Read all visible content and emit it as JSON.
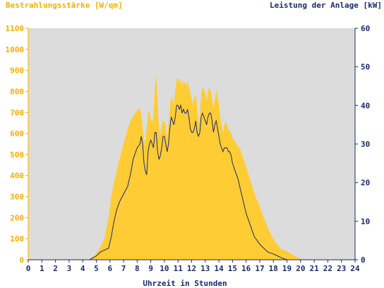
{
  "chart_data": {
    "type": "area",
    "left_title": "Bestrahlungsstärke [W/qm]",
    "right_title": "Leistung der Anlage [kW]",
    "xlabel": "Uhrzeit in Stunden",
    "x_ticks": [
      "0",
      "1",
      "2",
      "3",
      "4",
      "5",
      "6",
      "7",
      "8",
      "9",
      "10",
      "11",
      "12",
      "13",
      "14",
      "15",
      "16",
      "17",
      "18",
      "19",
      "20",
      "21",
      "22",
      "23",
      "24"
    ],
    "y_left_ticks": [
      "0",
      "100",
      "200",
      "300",
      "400",
      "500",
      "600",
      "700",
      "800",
      "900",
      "1000",
      "1100"
    ],
    "y_right_ticks": [
      "0",
      "10",
      "20",
      "30",
      "40",
      "50",
      "60"
    ],
    "xlim": [
      0,
      24
    ],
    "ylim_left": [
      0,
      1100
    ],
    "ylim_right": [
      0,
      60
    ],
    "grid": false,
    "colors": {
      "plot_background": "#dcdcdc",
      "irradiance_fill": "#ffcc33",
      "power_line": "#1a2a6e",
      "left_axis": "#f5b000",
      "right_axis": "#1a2a6e"
    },
    "series": [
      {
        "axis": "left",
        "style": "area",
        "x": [
          0,
          4.5,
          5,
          5.3,
          5.6,
          5.9,
          6.1,
          6.3,
          6.5,
          6.7,
          7.0,
          7.3,
          7.5,
          7.7,
          7.9,
          8.0,
          8.2,
          8.3,
          8.4,
          8.5,
          8.6,
          8.7,
          8.8,
          8.9,
          9.0,
          9.1,
          9.2,
          9.3,
          9.4,
          9.5,
          9.6,
          9.7,
          9.8,
          9.9,
          10.0,
          10.1,
          10.2,
          10.3,
          10.4,
          10.5,
          10.6,
          10.7,
          10.8,
          10.9,
          11.0,
          11.1,
          11.2,
          11.3,
          11.4,
          11.5,
          11.6,
          11.7,
          11.8,
          11.9,
          12.0,
          12.1,
          12.2,
          12.3,
          12.4,
          12.5,
          12.6,
          12.7,
          12.8,
          12.9,
          13.0,
          13.1,
          13.2,
          13.3,
          13.4,
          13.5,
          13.6,
          13.7,
          13.8,
          13.9,
          14.0,
          14.1,
          14.2,
          14.3,
          14.4,
          14.5,
          14.6,
          14.7,
          14.8,
          14.9,
          15.0,
          15.2,
          15.4,
          15.6,
          15.8,
          16.0,
          16.3,
          16.6,
          17.0,
          17.3,
          17.6,
          18.0,
          18.3,
          18.6,
          19.0,
          19.3,
          19.6,
          20.0,
          20.3,
          20.6,
          24
        ],
        "values": [
          0,
          0,
          30,
          60,
          100,
          200,
          300,
          370,
          420,
          480,
          550,
          620,
          660,
          680,
          700,
          710,
          720,
          690,
          620,
          580,
          540,
          620,
          700,
          700,
          670,
          650,
          680,
          820,
          880,
          740,
          620,
          600,
          640,
          660,
          660,
          630,
          580,
          640,
          720,
          780,
          760,
          740,
          800,
          860,
          860,
          840,
          860,
          820,
          850,
          840,
          830,
          850,
          820,
          800,
          760,
          740,
          770,
          790,
          720,
          650,
          680,
          780,
          820,
          810,
          790,
          760,
          800,
          820,
          800,
          760,
          720,
          760,
          800,
          780,
          740,
          680,
          640,
          600,
          640,
          660,
          640,
          610,
          620,
          600,
          580,
          560,
          540,
          520,
          480,
          440,
          380,
          320,
          250,
          200,
          150,
          100,
          70,
          50,
          40,
          30,
          15,
          5,
          0,
          0,
          0
        ]
      },
      {
        "axis": "right",
        "style": "line",
        "x": [
          0,
          4.5,
          5,
          5.3,
          5.6,
          5.9,
          6.1,
          6.3,
          6.5,
          6.7,
          7.0,
          7.3,
          7.5,
          7.7,
          7.9,
          8.0,
          8.2,
          8.3,
          8.4,
          8.5,
          8.6,
          8.7,
          8.8,
          8.9,
          9.0,
          9.1,
          9.2,
          9.3,
          9.4,
          9.5,
          9.6,
          9.7,
          9.8,
          9.9,
          10.0,
          10.1,
          10.2,
          10.3,
          10.4,
          10.5,
          10.6,
          10.7,
          10.8,
          10.9,
          11.0,
          11.1,
          11.2,
          11.3,
          11.4,
          11.5,
          11.6,
          11.7,
          11.8,
          11.9,
          12.0,
          12.1,
          12.2,
          12.3,
          12.4,
          12.5,
          12.6,
          12.7,
          12.8,
          12.9,
          13.0,
          13.1,
          13.2,
          13.3,
          13.4,
          13.5,
          13.6,
          13.7,
          13.8,
          13.9,
          14.0,
          14.1,
          14.2,
          14.3,
          14.4,
          14.5,
          14.6,
          14.7,
          14.8,
          14.9,
          15.0,
          15.2,
          15.4,
          15.6,
          15.8,
          16.0,
          16.3,
          16.6,
          17.0,
          17.3,
          17.6,
          18.0,
          18.3,
          18.6,
          19.0,
          19.3,
          19.6,
          20.0,
          20.3,
          20.6,
          24
        ],
        "values": [
          0,
          0,
          1,
          2,
          2.5,
          3,
          6,
          10,
          13,
          15,
          17,
          19,
          22,
          26,
          28,
          29,
          30,
          32,
          30,
          25,
          23,
          22,
          28,
          30,
          31,
          30,
          29,
          33,
          33,
          28,
          26,
          27,
          29,
          32,
          32,
          30,
          28,
          30,
          34,
          37,
          36,
          35,
          37,
          40,
          40,
          39,
          40,
          38,
          39,
          38,
          38,
          39,
          37,
          34,
          33,
          33,
          34,
          36,
          33,
          32,
          33,
          37,
          38,
          37,
          36,
          35,
          37,
          38,
          38,
          36,
          33,
          35,
          36,
          34,
          32,
          30,
          29,
          28,
          29,
          29,
          29,
          28,
          28,
          27,
          25,
          23,
          21,
          18,
          15,
          12,
          9,
          6,
          4,
          3,
          2,
          1.5,
          1,
          0.5,
          0,
          0,
          0,
          0,
          0,
          0,
          0
        ]
      }
    ]
  }
}
